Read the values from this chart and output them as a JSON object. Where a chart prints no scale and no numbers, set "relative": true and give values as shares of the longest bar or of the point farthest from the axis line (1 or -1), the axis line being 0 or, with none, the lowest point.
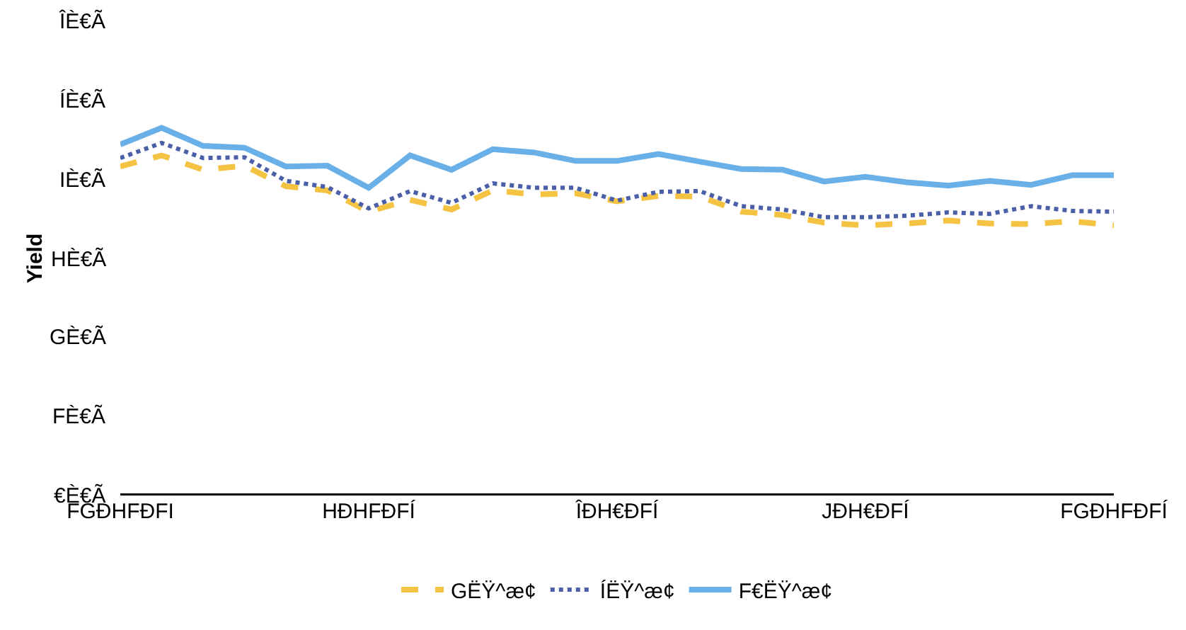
{
  "chart_data": {
    "type": "line",
    "ylabel": "Yield",
    "relative": true,
    "categories": [
      "FGÐHFÐFI",
      null,
      null,
      null,
      null,
      null,
      "HÐHFÐFÍ",
      null,
      null,
      null,
      null,
      null,
      "ÎÐH€ÐFÍ",
      null,
      null,
      null,
      null,
      null,
      "JÐH€ÐFÍ",
      null,
      null,
      null,
      null,
      null,
      "FGÐHFÐFÍ"
    ],
    "series": [
      {
        "name": "GËŸ^æ¢",
        "color": "#f5c342",
        "line_style": "dashed",
        "values": [
          0.895,
          0.925,
          0.886,
          0.897,
          0.841,
          0.83,
          0.772,
          0.804,
          0.778,
          0.83,
          0.819,
          0.822,
          0.8,
          0.815,
          0.813,
          0.772,
          0.763,
          0.742,
          0.735,
          0.74,
          0.748,
          0.74,
          0.738,
          0.746,
          0.735
        ]
      },
      {
        "name": "ÍËŸ^æ¢",
        "color": "#4a5fa8",
        "line_style": "dotted",
        "values": [
          0.918,
          0.959,
          0.918,
          0.92,
          0.856,
          0.839,
          0.781,
          0.828,
          0.796,
          0.849,
          0.837,
          0.837,
          0.802,
          0.826,
          0.828,
          0.787,
          0.778,
          0.757,
          0.757,
          0.761,
          0.77,
          0.766,
          0.787,
          0.774,
          0.772
        ]
      },
      {
        "name": "F€ËŸ^æ¢",
        "color": "#6ab0e8",
        "line_style": "solid",
        "values": [
          0.955,
          1,
          0.951,
          0.946,
          0.895,
          0.897,
          0.837,
          0.925,
          0.886,
          0.942,
          0.933,
          0.91,
          0.91,
          0.929,
          0.908,
          0.888,
          0.886,
          0.854,
          0.867,
          0.852,
          0.843,
          0.856,
          0.845,
          0.871,
          0.871
        ]
      }
    ],
    "annotations": [
      "€È€Ã",
      "FÈ€Ã",
      "GÈ€Ã",
      "HÈ€Ã",
      "IÈ€Ã",
      "ÍÈ€Ã",
      "ÎÈ€Ã"
    ],
    "legend": "bottom",
    "marker": "none"
  }
}
